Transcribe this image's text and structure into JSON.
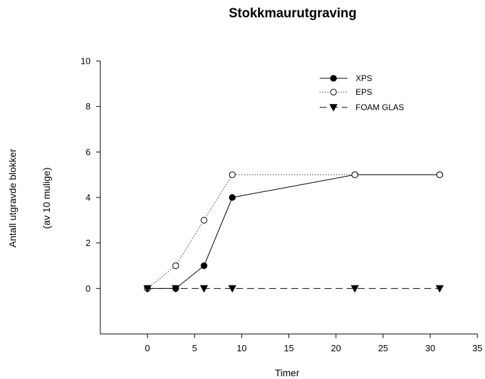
{
  "chart_data": {
    "type": "line",
    "title": "Stokkmaurutgraving",
    "xlabel": "Timer",
    "ylabel": "Antall utgravde blokker",
    "ylabel_sub": "(av 10 mulige)",
    "xlim": [
      -5,
      35
    ],
    "ylim": [
      -2,
      10
    ],
    "xticks": [
      0,
      5,
      10,
      15,
      20,
      25,
      30,
      35
    ],
    "yticks": [
      0,
      2,
      4,
      6,
      8,
      10
    ],
    "grid": false,
    "legend_position": "top-right",
    "series": [
      {
        "name": "XPS",
        "marker": "filled-circle",
        "linestyle": "solid",
        "x": [
          0,
          3,
          6,
          9,
          22,
          31
        ],
        "y": [
          0,
          0,
          1,
          4,
          5,
          5
        ]
      },
      {
        "name": "EPS",
        "marker": "open-circle",
        "linestyle": "dotted",
        "x": [
          0,
          3,
          6,
          9,
          22,
          31
        ],
        "y": [
          0,
          1,
          3,
          5,
          5,
          5
        ]
      },
      {
        "name": "FOAM GLAS",
        "marker": "filled-triangle-down",
        "linestyle": "dashed",
        "x": [
          0,
          3,
          6,
          9,
          22,
          31
        ],
        "y": [
          0,
          0,
          0,
          0,
          0,
          0
        ]
      }
    ]
  }
}
